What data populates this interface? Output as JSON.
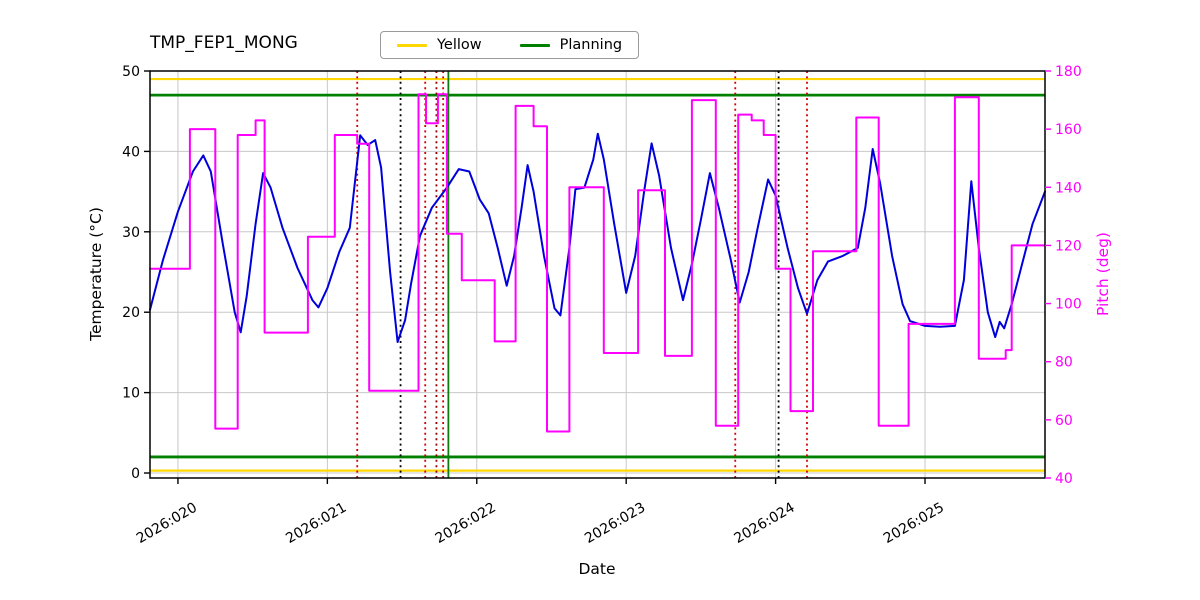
{
  "title": "TMP_FEP1_MONG",
  "legend": {
    "items": [
      {
        "label": "Yellow",
        "color": "#ffd700"
      },
      {
        "label": "Planning",
        "color": "#008000"
      }
    ]
  },
  "axes": {
    "x_label": "Date",
    "y_left_label": "Temperature (°C)",
    "y_right_label": "Pitch (deg)",
    "y_right_color": "#ff00ff"
  },
  "chart_data": {
    "type": "line",
    "title": "TMP_FEP1_MONG",
    "grid": true,
    "grid_color": "#c8c8c8",
    "x_axis": {
      "label": "Date",
      "range": [
        19.813,
        25.803
      ],
      "ticks": [
        {
          "value": 20,
          "label": "2026:020"
        },
        {
          "value": 21,
          "label": "2026:021"
        },
        {
          "value": 22,
          "label": "2026:022"
        },
        {
          "value": 23,
          "label": "2026:023"
        },
        {
          "value": 24,
          "label": "2026:024"
        },
        {
          "value": 25,
          "label": "2026:025"
        }
      ]
    },
    "y_left": {
      "label": "Temperature (°C)",
      "range": [
        -0.62,
        50
      ],
      "ticks": [
        0,
        10,
        20,
        30,
        40,
        50
      ],
      "color": "#000000"
    },
    "y_right": {
      "label": "Pitch (deg)",
      "range": [
        40,
        180
      ],
      "ticks": [
        40,
        60,
        80,
        100,
        120,
        140,
        160,
        180
      ],
      "color": "#ff00ff"
    },
    "reference_lines": [
      {
        "name": "yellow-upper",
        "value": 49.0,
        "color": "#ffd700",
        "width": 2.2
      },
      {
        "name": "planning-upper",
        "value": 47.0,
        "color": "#008000",
        "width": 2.8
      },
      {
        "name": "planning-lower",
        "value": 2.0,
        "color": "#008000",
        "width": 2.8
      },
      {
        "name": "yellow-lower",
        "value": 0.3,
        "color": "#ffd700",
        "width": 2.2
      }
    ],
    "vertical_lines": [
      {
        "x": 21.2,
        "color": "#d40000",
        "style": "dotted"
      },
      {
        "x": 21.49,
        "color": "#000000",
        "style": "dotted"
      },
      {
        "x": 21.655,
        "color": "#d40000",
        "style": "dotted"
      },
      {
        "x": 21.73,
        "color": "#8b0000",
        "style": "dotted"
      },
      {
        "x": 21.775,
        "color": "#d40000",
        "style": "dotted"
      },
      {
        "x": 21.81,
        "color": "#0f7a0f",
        "style": "solid"
      },
      {
        "x": 23.73,
        "color": "#d40000",
        "style": "dotted"
      },
      {
        "x": 24.02,
        "color": "#000000",
        "style": "dotted"
      },
      {
        "x": 24.21,
        "color": "#d40000",
        "style": "dotted"
      }
    ],
    "series": [
      {
        "name": "temperature",
        "axis": "left",
        "color": "#0000dd",
        "style": "line",
        "points": [
          [
            19.813,
            20.3
          ],
          [
            19.9,
            26.5
          ],
          [
            20.0,
            32.5
          ],
          [
            20.1,
            37.5
          ],
          [
            20.17,
            39.5
          ],
          [
            20.22,
            37.5
          ],
          [
            20.3,
            28.5
          ],
          [
            20.38,
            20.0
          ],
          [
            20.42,
            17.5
          ],
          [
            20.46,
            22.0
          ],
          [
            20.52,
            31.0
          ],
          [
            20.57,
            37.3
          ],
          [
            20.62,
            35.5
          ],
          [
            20.7,
            30.5
          ],
          [
            20.8,
            25.5
          ],
          [
            20.9,
            21.5
          ],
          [
            20.94,
            20.6
          ],
          [
            21.0,
            23.0
          ],
          [
            21.08,
            27.5
          ],
          [
            21.15,
            30.5
          ],
          [
            21.22,
            42.0
          ],
          [
            21.27,
            40.8
          ],
          [
            21.32,
            41.4
          ],
          [
            21.36,
            38.0
          ],
          [
            21.42,
            25.0
          ],
          [
            21.47,
            16.3
          ],
          [
            21.52,
            19.0
          ],
          [
            21.56,
            23.5
          ],
          [
            21.62,
            29.5
          ],
          [
            21.7,
            33.0
          ],
          [
            21.8,
            35.5
          ],
          [
            21.88,
            37.8
          ],
          [
            21.95,
            37.5
          ],
          [
            22.02,
            34.0
          ],
          [
            22.08,
            32.3
          ],
          [
            22.14,
            28.0
          ],
          [
            22.2,
            23.3
          ],
          [
            22.25,
            27.0
          ],
          [
            22.3,
            33.0
          ],
          [
            22.34,
            38.3
          ],
          [
            22.38,
            35.0
          ],
          [
            22.45,
            27.0
          ],
          [
            22.52,
            20.5
          ],
          [
            22.56,
            19.6
          ],
          [
            22.62,
            28.0
          ],
          [
            22.66,
            35.3
          ],
          [
            22.72,
            35.5
          ],
          [
            22.78,
            39.0
          ],
          [
            22.81,
            42.2
          ],
          [
            22.85,
            39.0
          ],
          [
            22.92,
            31.0
          ],
          [
            23.0,
            22.4
          ],
          [
            23.06,
            27.0
          ],
          [
            23.12,
            35.0
          ],
          [
            23.17,
            41.0
          ],
          [
            23.22,
            37.0
          ],
          [
            23.3,
            28.0
          ],
          [
            23.38,
            21.5
          ],
          [
            23.44,
            26.0
          ],
          [
            23.5,
            31.5
          ],
          [
            23.56,
            37.3
          ],
          [
            23.62,
            33.0
          ],
          [
            23.7,
            26.5
          ],
          [
            23.76,
            21.2
          ],
          [
            23.82,
            25.0
          ],
          [
            23.88,
            30.5
          ],
          [
            23.95,
            36.5
          ],
          [
            24.0,
            34.5
          ],
          [
            24.08,
            28.0
          ],
          [
            24.15,
            23.0
          ],
          [
            24.21,
            19.8
          ],
          [
            24.28,
            24.0
          ],
          [
            24.35,
            26.3
          ],
          [
            24.45,
            27.0
          ],
          [
            24.55,
            28.0
          ],
          [
            24.6,
            33.0
          ],
          [
            24.65,
            40.3
          ],
          [
            24.7,
            36.0
          ],
          [
            24.78,
            27.0
          ],
          [
            24.85,
            21.0
          ],
          [
            24.9,
            18.9
          ],
          [
            25.0,
            18.3
          ],
          [
            25.1,
            18.2
          ],
          [
            25.2,
            18.3
          ],
          [
            25.26,
            24.0
          ],
          [
            25.31,
            36.3
          ],
          [
            25.36,
            28.0
          ],
          [
            25.42,
            20.0
          ],
          [
            25.47,
            16.9
          ],
          [
            25.5,
            18.8
          ],
          [
            25.53,
            18.0
          ],
          [
            25.58,
            21.0
          ],
          [
            25.65,
            26.0
          ],
          [
            25.72,
            31.0
          ],
          [
            25.803,
            35.0
          ]
        ]
      },
      {
        "name": "pitch",
        "axis": "right",
        "color": "#ff00ff",
        "style": "step",
        "points": [
          [
            19.813,
            112
          ],
          [
            20.08,
            160
          ],
          [
            20.25,
            57
          ],
          [
            20.4,
            158
          ],
          [
            20.52,
            163
          ],
          [
            20.58,
            90
          ],
          [
            20.87,
            123
          ],
          [
            21.05,
            158
          ],
          [
            21.2,
            155
          ],
          [
            21.28,
            70
          ],
          [
            21.61,
            172
          ],
          [
            21.66,
            162
          ],
          [
            21.74,
            172
          ],
          [
            21.8,
            124
          ],
          [
            21.9,
            108
          ],
          [
            22.12,
            87
          ],
          [
            22.26,
            168
          ],
          [
            22.38,
            161
          ],
          [
            22.47,
            56
          ],
          [
            22.62,
            140
          ],
          [
            22.85,
            83
          ],
          [
            23.08,
            139
          ],
          [
            23.26,
            82
          ],
          [
            23.44,
            170
          ],
          [
            23.6,
            58
          ],
          [
            23.75,
            165
          ],
          [
            23.84,
            163
          ],
          [
            23.92,
            158
          ],
          [
            24.0,
            112
          ],
          [
            24.1,
            63
          ],
          [
            24.25,
            118
          ],
          [
            24.54,
            164
          ],
          [
            24.69,
            58
          ],
          [
            24.89,
            93
          ],
          [
            25.2,
            171
          ],
          [
            25.36,
            81
          ],
          [
            25.54,
            84
          ],
          [
            25.58,
            120
          ],
          [
            25.803,
            120
          ]
        ]
      }
    ]
  }
}
